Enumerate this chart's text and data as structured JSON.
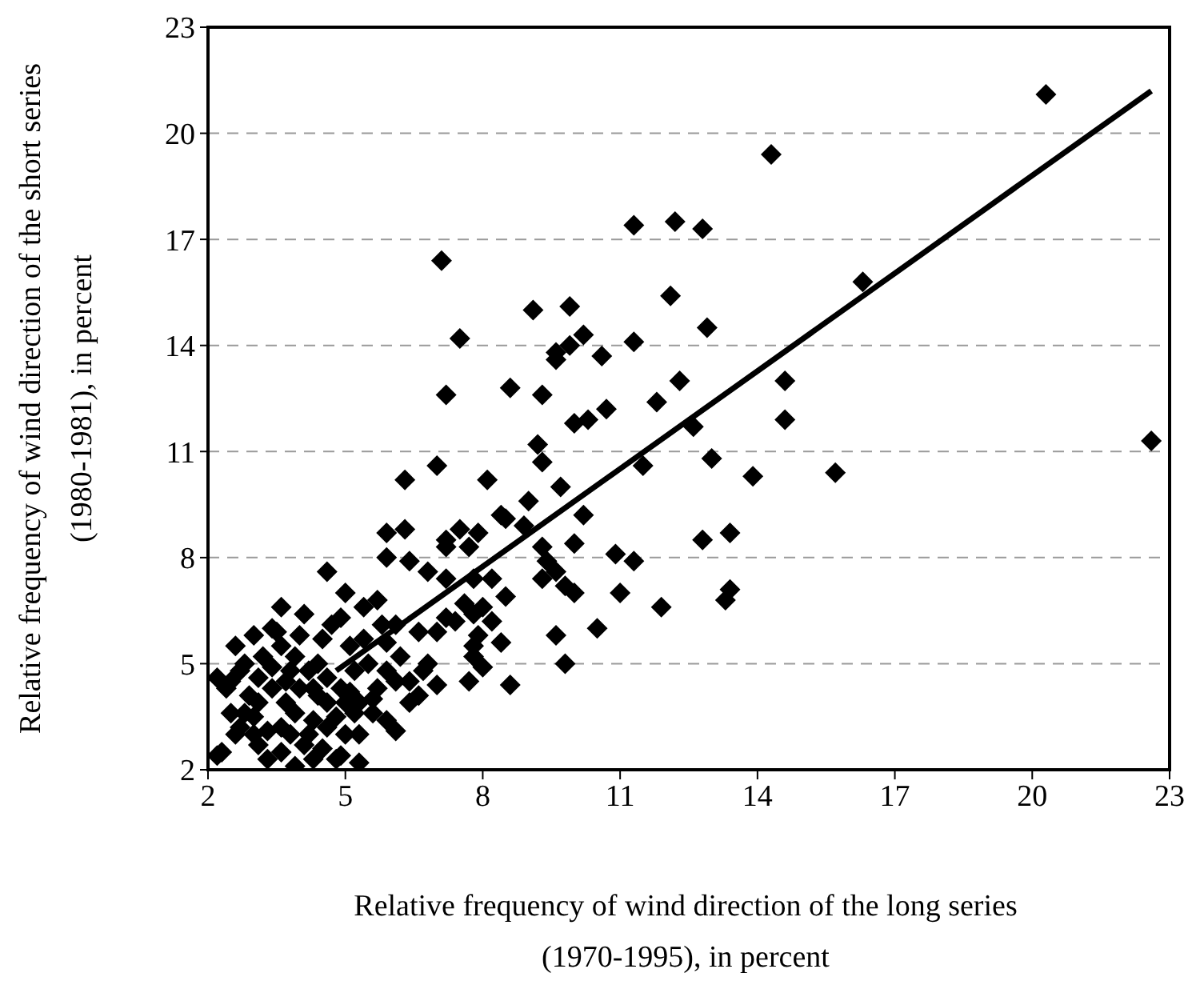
{
  "chart_data": {
    "type": "scatter",
    "xlabel": "Relative frequency of wind direction of the long series (1970-1995), in percent",
    "ylabel": "Relative frequency of wind direction of the short series (1980-1981), in percent",
    "xlim": [
      2,
      23
    ],
    "xticks": [
      2,
      5,
      8,
      11,
      14,
      17,
      20,
      23
    ],
    "ylim": [
      2,
      23
    ],
    "yticks": [
      2,
      5,
      8,
      11,
      14,
      17,
      20,
      23
    ],
    "grid": "y",
    "series": [
      {
        "color": "#000000",
        "marker": "diamond",
        "x": [
          20.3,
          14.3,
          22.6,
          14.6,
          14.6,
          13.0,
          13.9,
          15.7,
          13.4,
          12.8,
          12.9,
          16.3,
          11.3,
          12.2,
          7.1,
          7.5,
          9.1,
          9.9,
          12.1,
          10.2,
          9.9,
          9.6,
          9.6,
          10.6,
          11.3,
          7.2,
          8.6,
          9.3,
          10.0,
          10.3,
          10.7,
          11.8,
          12.3,
          7.0,
          8.1,
          9.2,
          9.3,
          11.5,
          12.6,
          9.0,
          9.7,
          10.2,
          7.5,
          8.5,
          12.8,
          9.3,
          10.0,
          10.9,
          11.3,
          8.2,
          9.3,
          9.6,
          10.0,
          11.0,
          11.9,
          13.4,
          13.3,
          8.5,
          7.4,
          8.2,
          7.0,
          7.9,
          9.6,
          10.5,
          7.8,
          8.0,
          9.8,
          6.8,
          7.0,
          7.7,
          8.6,
          6.6,
          7.2,
          7.7,
          8.4,
          8.9,
          7.9,
          6.8,
          7.2,
          7.6,
          8.0,
          7.8,
          7.8,
          9.4,
          9.8,
          6.3,
          5.9,
          6.3,
          5.9,
          6.4,
          7.2,
          4.6,
          5.0,
          4.9,
          5.7,
          5.4,
          3.6,
          3.0,
          3.4,
          6.1,
          5.9,
          6.4,
          7.2,
          7.8,
          8.4,
          6.1,
          5.6,
          6.1,
          5.6,
          5.3,
          4.9,
          2.2,
          2.2,
          2.5,
          2.8,
          2.4,
          2.3,
          2.7,
          3.1,
          3.2,
          3.5,
          3.8,
          3.9,
          4.1,
          4.3,
          4.5,
          4.6,
          4.8,
          5.0,
          5.2,
          5.3,
          5.4,
          5.7,
          5.9,
          2.7,
          3.0,
          3.3,
          3.6,
          3.9,
          4.1,
          4.4,
          4.7,
          5.1,
          5.5,
          5.8,
          6.2,
          6.4,
          6.6,
          6.7,
          2.5,
          2.9,
          3.4,
          3.7,
          4.0,
          4.3,
          4.6,
          4.9,
          5.2,
          5.9,
          3.6,
          3.9,
          4.3,
          3.1,
          3.4,
          4.6,
          5.0,
          5.3,
          2.6,
          2.6,
          3.0,
          3.3,
          3.8,
          4.2,
          4.5,
          4.8,
          4.4,
          3.7,
          3.1,
          2.8,
          4.2,
          5.1,
          3.6,
          4.0
        ],
        "values": [
          21.1,
          19.4,
          11.3,
          13.0,
          11.9,
          10.8,
          10.3,
          10.4,
          8.7,
          17.3,
          14.5,
          15.8,
          17.4,
          17.5,
          16.4,
          14.2,
          15.0,
          15.1,
          15.4,
          14.3,
          14.0,
          13.8,
          13.6,
          13.7,
          14.1,
          12.6,
          12.8,
          12.6,
          11.8,
          11.9,
          12.2,
          12.4,
          13.0,
          10.6,
          10.2,
          11.2,
          10.7,
          10.6,
          11.7,
          9.6,
          10.0,
          9.2,
          8.8,
          9.1,
          8.5,
          8.3,
          8.4,
          8.1,
          7.9,
          7.4,
          7.4,
          7.6,
          7.0,
          7.0,
          6.6,
          7.1,
          6.8,
          6.9,
          6.2,
          6.2,
          5.9,
          5.8,
          5.8,
          6.0,
          5.2,
          4.9,
          5.0,
          5.0,
          4.4,
          4.5,
          4.4,
          4.1,
          8.5,
          8.3,
          9.2,
          8.9,
          8.7,
          7.6,
          7.4,
          6.7,
          6.6,
          6.4,
          7.4,
          7.9,
          7.2,
          10.2,
          8.7,
          8.8,
          8.0,
          7.9,
          8.3,
          7.6,
          7.0,
          6.3,
          6.8,
          6.6,
          6.6,
          5.8,
          6.0,
          6.1,
          5.6,
          4.5,
          6.3,
          5.5,
          5.6,
          4.5,
          4.0,
          3.1,
          3.6,
          2.2,
          2.4,
          2.4,
          4.6,
          4.5,
          3.6,
          4.3,
          2.5,
          3.2,
          3.9,
          5.2,
          5.9,
          4.8,
          3.6,
          2.7,
          4.3,
          5.7,
          3.2,
          2.3,
          3.9,
          4.8,
          3.0,
          5.7,
          4.3,
          3.4,
          4.8,
          3.0,
          2.3,
          3.2,
          5.2,
          6.4,
          5.0,
          6.1,
          5.5,
          5.0,
          6.1,
          5.2,
          3.9,
          5.9,
          4.8,
          3.6,
          4.1,
          4.3,
          3.9,
          4.3,
          3.4,
          3.9,
          4.3,
          3.6,
          4.8,
          2.5,
          2.1,
          2.3,
          2.7,
          4.9,
          4.6,
          3.0,
          3.9,
          5.5,
          3.0,
          3.5,
          3.1,
          3.0,
          3.0,
          2.6,
          3.5,
          4.1,
          4.5,
          4.6,
          5.0,
          4.8,
          4.2,
          5.5,
          5.8
        ]
      },
      {
        "type": "line",
        "color": "#000000",
        "marker": "none",
        "line_style": "solid",
        "x": [
          4.8,
          22.6
        ],
        "values": [
          4.8,
          21.2
        ]
      }
    ]
  }
}
